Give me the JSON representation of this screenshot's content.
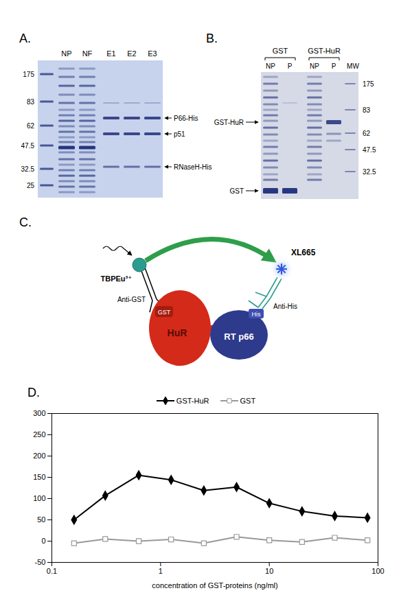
{
  "panel_labels": [
    "A.",
    "B.",
    "C.",
    "D."
  ],
  "panel_a": {
    "lanes": [
      "NP",
      "NF",
      "E1",
      "E2",
      "E3"
    ],
    "mw_markers": [
      175,
      83,
      62,
      47.5,
      32.5,
      25
    ],
    "arrows": [
      "P66-His",
      "p51",
      "RNaseH-His"
    ]
  },
  "panel_b": {
    "groups": [
      {
        "name": "GST",
        "lanes": [
          "NP",
          "P"
        ]
      },
      {
        "name": "GST-HuR",
        "lanes": [
          "NP",
          "P"
        ]
      }
    ],
    "marker_lane": "MW",
    "mw_markers": [
      175,
      83,
      62,
      47.5,
      32.5
    ],
    "arrows": [
      "GST-HuR",
      "GST"
    ]
  },
  "panel_c": {
    "labels": {
      "donor": "TBPEu³⁺",
      "donor_antibody": "Anti-GST",
      "tag1": "GST",
      "protein1": "HuR",
      "protein2": "RT p66",
      "tag2": "His",
      "acceptor_antibody": "Anti-His",
      "acceptor": "XL665"
    }
  },
  "chart_data": {
    "type": "line",
    "x_label": "concentration of GST-proteins (ng/ml)",
    "log": "x",
    "x": [
      0.16,
      0.31,
      0.63,
      1.25,
      2.5,
      5,
      10,
      20,
      40,
      80
    ],
    "series": [
      {
        "name": "GST-HuR",
        "color": "#000000",
        "marker": "diamond",
        "line_style": "solid",
        "values": [
          50,
          107,
          155,
          144,
          119,
          127,
          89,
          70,
          59,
          55
        ]
      },
      {
        "name": "GST",
        "color": "#999999",
        "marker": "open_square",
        "line_style": "solid",
        "values": [
          -5,
          5,
          0,
          4,
          -5,
          10,
          2,
          -2,
          8,
          2
        ]
      }
    ],
    "xlim": [
      0.1,
      100
    ],
    "xticks": [
      0.1,
      1,
      10,
      100
    ],
    "ylim": [
      -50,
      300
    ],
    "yticks": [
      -50,
      0,
      50,
      100,
      150,
      200,
      250,
      300
    ],
    "legend": "top"
  }
}
